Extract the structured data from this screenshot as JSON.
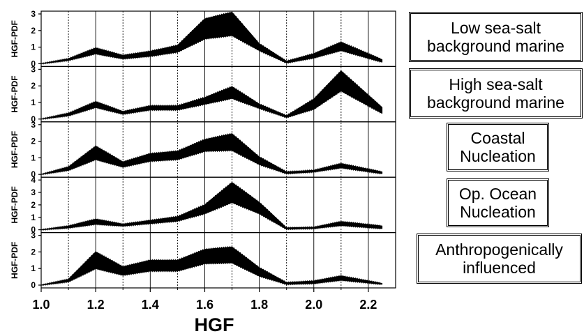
{
  "chart_data": {
    "type": "area",
    "xlabel": "HGF",
    "ylabel": "HGF-PDF",
    "xlim": [
      1.0,
      2.3
    ],
    "xticks": [
      "1.0",
      "1.2",
      "1.4",
      "1.6",
      "1.8",
      "2.0",
      "2.2"
    ],
    "x": [
      1.0,
      1.1,
      1.2,
      1.3,
      1.4,
      1.5,
      1.6,
      1.7,
      1.8,
      1.9,
      2.0,
      2.1,
      2.25
    ],
    "grid": "vertical dotted at 0.1 steps, solid at 0.2 steps",
    "band_color": "#000000",
    "panels": [
      {
        "name_lines": [
          "Low sea-salt",
          "background marine"
        ],
        "ylim": [
          0,
          3
        ],
        "yticks": [
          "0",
          "1",
          "2",
          "3"
        ],
        "lower": [
          0,
          0.2,
          0.6,
          0.3,
          0.45,
          0.7,
          1.5,
          1.7,
          0.8,
          0.05,
          0.35,
          0.8,
          0.1
        ],
        "upper": [
          0,
          0.3,
          0.95,
          0.5,
          0.75,
          1.1,
          2.7,
          3.1,
          1.2,
          0.15,
          0.6,
          1.3,
          0.25
        ]
      },
      {
        "name_lines": [
          "High sea-salt",
          "background marine"
        ],
        "ylim": [
          0,
          3
        ],
        "yticks": [
          "0",
          "1",
          "2",
          "3"
        ],
        "lower": [
          0,
          0.2,
          0.7,
          0.3,
          0.55,
          0.55,
          0.9,
          1.25,
          0.65,
          0.1,
          0.6,
          1.7,
          0.35
        ],
        "upper": [
          0,
          0.35,
          1.05,
          0.45,
          0.8,
          0.8,
          1.3,
          1.95,
          0.9,
          0.2,
          1.2,
          2.9,
          0.7
        ]
      },
      {
        "name_lines": [
          "Coastal",
          "Nucleation"
        ],
        "ylim": [
          0,
          3
        ],
        "yticks": [
          "0",
          "1",
          "2",
          "3"
        ],
        "lower": [
          0,
          0.25,
          0.9,
          0.45,
          0.8,
          0.9,
          1.4,
          1.45,
          0.6,
          0.05,
          0.15,
          0.4,
          0.05
        ],
        "upper": [
          0,
          0.45,
          1.7,
          0.75,
          1.25,
          1.4,
          2.1,
          2.45,
          1.05,
          0.15,
          0.25,
          0.65,
          0.15
        ]
      },
      {
        "name_lines": [
          "Op. Ocean",
          "Nucleation"
        ],
        "ylim": [
          0,
          4
        ],
        "yticks": [
          "0",
          "1",
          "2",
          "3",
          "4"
        ],
        "lower": [
          0,
          0.15,
          0.45,
          0.3,
          0.5,
          0.7,
          1.3,
          2.2,
          1.3,
          0.05,
          0.1,
          0.35,
          0.1
        ],
        "upper": [
          0,
          0.3,
          0.85,
          0.45,
          0.75,
          1.05,
          2.0,
          3.8,
          2.2,
          0.15,
          0.2,
          0.65,
          0.3
        ]
      },
      {
        "name_lines": [
          "Anthropogenically",
          "influenced"
        ],
        "ylim": [
          0,
          3
        ],
        "yticks": [
          "0",
          "1",
          "2",
          "3"
        ],
        "lower": [
          0,
          0.2,
          1.0,
          0.6,
          0.85,
          0.85,
          1.3,
          1.35,
          0.55,
          0.05,
          0.1,
          0.3,
          0.05
        ],
        "upper": [
          0,
          0.35,
          2.0,
          1.1,
          1.5,
          1.5,
          2.15,
          2.3,
          1.05,
          0.15,
          0.25,
          0.55,
          0.1
        ]
      }
    ]
  }
}
